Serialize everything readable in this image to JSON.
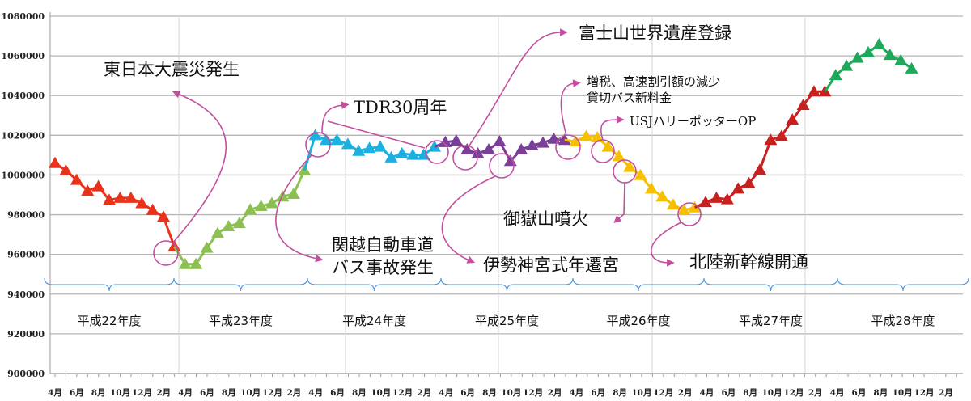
{
  "chart_data": {
    "type": "line",
    "title": "",
    "xlabel": "",
    "ylabel": "",
    "ylim": [
      900000,
      1080000
    ],
    "yticks": [
      "900000",
      "920000",
      "940000",
      "960000",
      "980000",
      "1000000",
      "1020000",
      "1040000",
      "1060000",
      "1080000"
    ],
    "xtick_labels": [
      "4月",
      "6月",
      "8月",
      "10月",
      "12月",
      "2月",
      "4月",
      "6月",
      "8月",
      "10月",
      "12月",
      "2月",
      "4月",
      "6月",
      "8月",
      "10月",
      "12月",
      "2月",
      "4月",
      "6月",
      "8月",
      "10月",
      "12月",
      "2月",
      "4月",
      "6月",
      "8月",
      "10月",
      "12月",
      "2月",
      "4月",
      "6月",
      "8月",
      "10月",
      "12月",
      "2月",
      "4月",
      "6月",
      "8月",
      "10月",
      "12月",
      "2月"
    ],
    "grid": true,
    "legend": "none",
    "series": [
      {
        "name": "平成22年度",
        "color": "#e8321a",
        "values": [
          1006000,
          1002300,
          997500,
          992000,
          994200,
          987400,
          988400,
          988400,
          985700,
          982300,
          978900,
          964000
        ]
      },
      {
        "name": "平成23年度",
        "color": "#8cc152",
        "values": [
          955100,
          955100,
          963300,
          970700,
          974100,
          975700,
          982500,
          984300,
          985700,
          989100,
          990400,
          1002300
        ]
      },
      {
        "name": "平成24年度",
        "color": "#1ab0e0",
        "values": [
          1020000,
          1017600,
          1017600,
          1015500,
          1012100,
          1013500,
          1014200,
          1008800,
          1010800,
          1010100,
          1010100,
          1014200
        ]
      },
      {
        "name": "平成25年度",
        "color": "#7b3f9a",
        "values": [
          1016500,
          1017300,
          1012800,
          1010800,
          1012800,
          1016900,
          1007000,
          1012800,
          1014900,
          1016200,
          1018200,
          1017600
        ]
      },
      {
        "name": "平成26年度",
        "color": "#f6c000",
        "values": [
          1016900,
          1019600,
          1018900,
          1014200,
          1009400,
          1004000,
          999900,
          993100,
          989100,
          985000,
          982300,
          983600
        ]
      },
      {
        "name": "平成27年度",
        "color": "#c8201e",
        "values": [
          986300,
          988400,
          987700,
          993100,
          995800,
          1002600,
          1017600,
          1019600,
          1027800,
          1035200,
          1042000,
          1042000
        ]
      },
      {
        "name": "平成28年度",
        "color": "#1ea85a",
        "values": [
          1050200,
          1054900,
          1059000,
          1061700,
          1065800,
          1060400,
          1057700,
          1053600
        ]
      }
    ],
    "fiscal_year_labels": [
      "平成22年度",
      "平成23年度",
      "平成24年度",
      "平成25年度",
      "平成26年度",
      "平成27年度",
      "平成28年度"
    ],
    "annotations": {
      "earthquake": "東日本大震災発生",
      "tdr": "TDR30周年",
      "fuji": "富士山世界遺産登録",
      "tax_line1": "増税、高速割引額の減少",
      "tax_line2": "貸切バス新料金",
      "usj": "USJハリーポッターOP",
      "ontake": "御嶽山噴火",
      "kanetsu_line1": "関越自動車道",
      "kanetsu_line2": "バス事故発生",
      "ise": "伊勢神宮式年遷宮",
      "hokuriku": "北陸新幹線開通"
    }
  }
}
